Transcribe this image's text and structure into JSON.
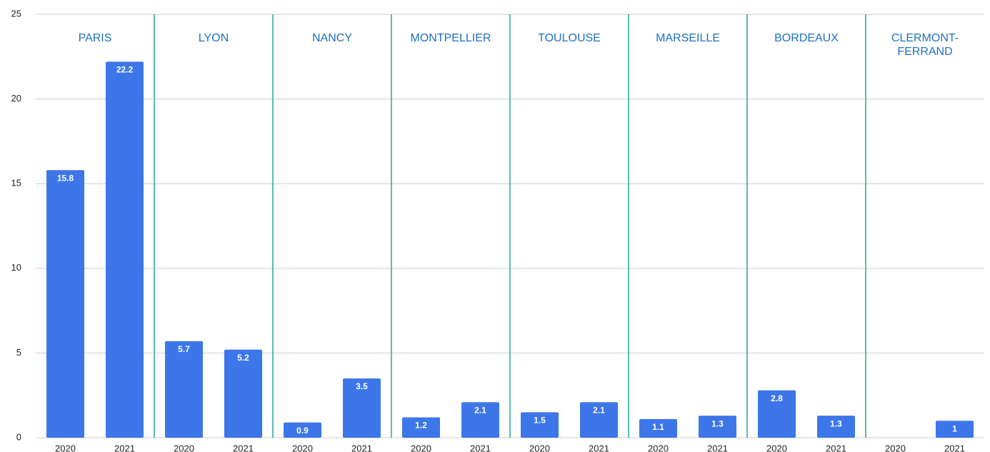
{
  "chart_data": {
    "type": "bar",
    "color": "#3d76e8",
    "divider_color": "#26a69a",
    "ylim": [
      0,
      25
    ],
    "yticks": [
      0,
      5,
      10,
      15,
      20,
      25
    ],
    "grid": true,
    "groups": [
      {
        "name": "PARIS",
        "categories": [
          "2020",
          "2021"
        ],
        "values": [
          15.8,
          22.2
        ]
      },
      {
        "name": "LYON",
        "categories": [
          "2020",
          "2021"
        ],
        "values": [
          5.7,
          5.2
        ]
      },
      {
        "name": "NANCY",
        "categories": [
          "2020",
          "2021"
        ],
        "values": [
          0.9,
          3.5
        ]
      },
      {
        "name": "MONTPELLIER",
        "categories": [
          "2020",
          "2021"
        ],
        "values": [
          1.2,
          2.1
        ]
      },
      {
        "name": "TOULOUSE",
        "categories": [
          "2020",
          "2021"
        ],
        "values": [
          1.5,
          2.1
        ]
      },
      {
        "name": "MARSEILLE",
        "categories": [
          "2020",
          "2021"
        ],
        "values": [
          1.1,
          1.3
        ]
      },
      {
        "name": "BORDEAUX",
        "categories": [
          "2020",
          "2021"
        ],
        "values": [
          2.8,
          1.3
        ]
      },
      {
        "name": "CLERMONT-FERRAND",
        "categories": [
          "2020",
          "2021"
        ],
        "values": [
          null,
          1
        ]
      }
    ]
  }
}
